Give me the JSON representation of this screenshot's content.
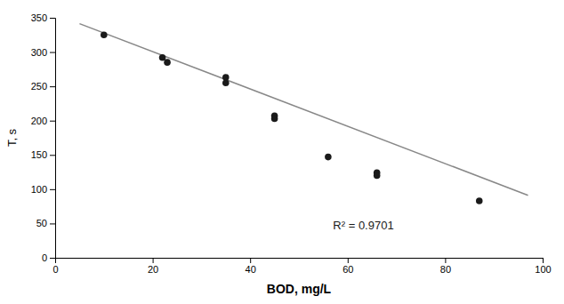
{
  "chart_data": {
    "type": "scatter",
    "series": [
      {
        "type": "line",
        "color": "#888888",
        "x": [
          5,
          97
        ],
        "values": [
          341.4,
          91.16
        ]
      },
      {
        "type": "scatter",
        "color": "#1a1a1a",
        "marker": "circle",
        "x": [
          10,
          22,
          23,
          35,
          35,
          45,
          45,
          56,
          66,
          66,
          87
        ],
        "values": [
          325,
          292,
          285,
          263,
          255,
          207,
          203,
          147,
          124,
          120,
          83
        ]
      }
    ],
    "annotations": [
      {
        "text": "R² = 0.9701",
        "x": 57,
        "y": 42
      }
    ],
    "xlabel": "BOD, mg/L",
    "ylabel": "T, s",
    "xlim": [
      0,
      100
    ],
    "ylim": [
      0,
      350
    ],
    "xticks": [
      0,
      20,
      40,
      60,
      80,
      100
    ],
    "yticks": [
      0,
      50,
      100,
      150,
      200,
      250,
      300,
      350
    ],
    "grid": false
  }
}
